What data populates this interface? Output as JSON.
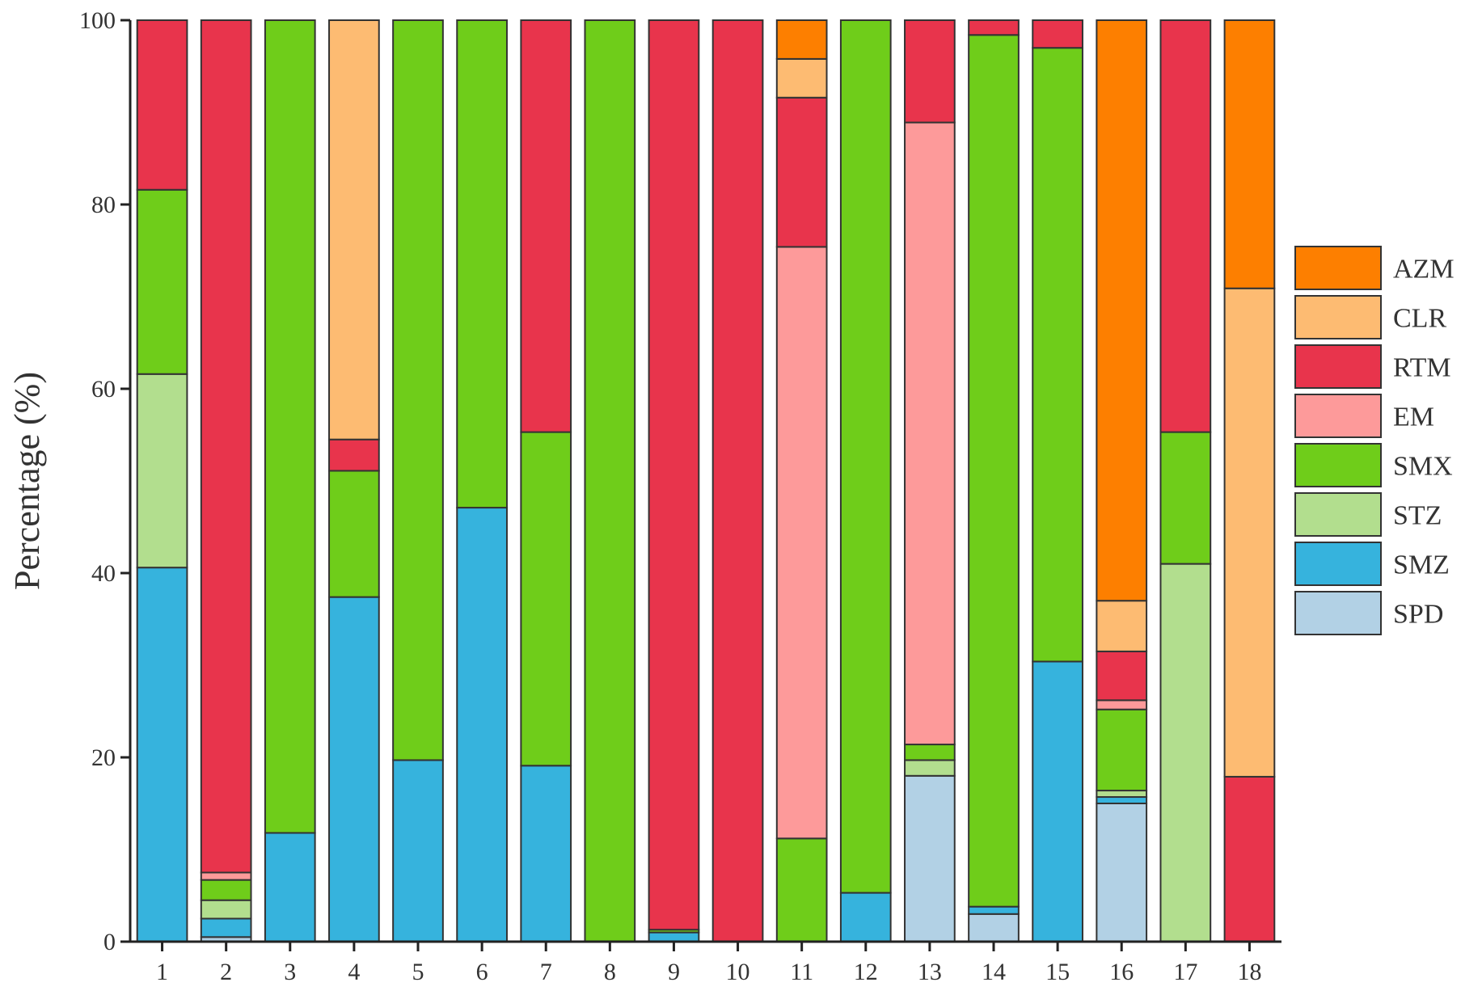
{
  "chart_data": {
    "type": "bar",
    "stacked": true,
    "title": "",
    "xlabel": "",
    "ylabel": "Percentage (%)",
    "ylim": [
      0,
      100
    ],
    "yticks": [
      0,
      20,
      40,
      60,
      80,
      100
    ],
    "legend_position": "right",
    "grid": false,
    "categories": [
      "1",
      "2",
      "3",
      "4",
      "5",
      "6",
      "7",
      "8",
      "9",
      "10",
      "11",
      "12",
      "13",
      "14",
      "15",
      "16",
      "17",
      "18"
    ],
    "series": [
      {
        "name": "SPD",
        "color": "#b2d1e5",
        "values": [
          0,
          0.5,
          0,
          0,
          0,
          0,
          0,
          0,
          0,
          0,
          0,
          0,
          18,
          3,
          0,
          15,
          0,
          0
        ]
      },
      {
        "name": "SMZ",
        "color": "#36b3dd",
        "values": [
          40.6,
          2,
          11.8,
          37.4,
          19.7,
          47.1,
          19.1,
          0,
          1,
          0,
          0,
          5.3,
          0,
          0.8,
          30.4,
          0.7,
          0,
          0
        ]
      },
      {
        "name": "STZ",
        "color": "#b2de8e",
        "values": [
          21,
          2,
          0,
          0,
          0,
          0,
          0,
          0,
          0,
          0,
          0,
          0,
          1.7,
          0,
          0,
          0.7,
          41,
          0
        ]
      },
      {
        "name": "SMX",
        "color": "#6fcd1a",
        "values": [
          20,
          2.2,
          88.2,
          13.7,
          80.3,
          52.9,
          36.2,
          100,
          0.3,
          0,
          11.2,
          94.7,
          1.7,
          94.6,
          66.6,
          8.8,
          14.3,
          0
        ]
      },
      {
        "name": "EM",
        "color": "#fd9a9a",
        "values": [
          0,
          0.8,
          0,
          0,
          0,
          0,
          0,
          0,
          0,
          0,
          64.2,
          0,
          67.5,
          0,
          0,
          1,
          0,
          0
        ]
      },
      {
        "name": "RTM",
        "color": "#e8344c",
        "values": [
          18.4,
          92.5,
          0,
          3.4,
          0,
          0,
          44.7,
          0,
          98.7,
          100,
          16.2,
          0,
          11.1,
          1.6,
          3,
          5.3,
          44.7,
          17.9
        ]
      },
      {
        "name": "CLR",
        "color": "#fdbb72",
        "values": [
          0,
          0,
          0,
          45.5,
          0,
          0,
          0,
          0,
          0,
          0,
          4.2,
          0,
          0,
          0,
          0,
          5.5,
          0,
          53
        ]
      },
      {
        "name": "AZM",
        "color": "#fd7f00",
        "values": [
          0,
          0,
          0,
          0,
          0,
          0,
          0,
          0,
          0,
          0,
          4.2,
          0,
          0,
          0,
          0,
          63,
          0,
          29.1
        ]
      }
    ],
    "legend_order": [
      "AZM",
      "CLR",
      "RTM",
      "EM",
      "SMX",
      "STZ",
      "SMZ",
      "SPD"
    ]
  }
}
